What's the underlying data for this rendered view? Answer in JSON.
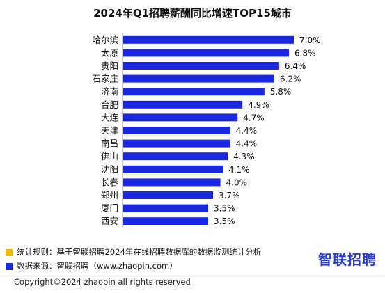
{
  "colors": {
    "bar": "#1a27e0",
    "rule_square": "#f2b800",
    "source_square": "#1a27e0",
    "brand": "#2b3fd6"
  },
  "chart_data": {
    "type": "bar",
    "orientation": "horizontal",
    "title": "2024年Q1招聘薪酬同比增速TOP15城市",
    "categories": [
      "哈尔滨",
      "太原",
      "贵阳",
      "石家庄",
      "济南",
      "合肥",
      "大连",
      "天津",
      "南昌",
      "佛山",
      "沈阳",
      "长春",
      "郑州",
      "厦门",
      "西安"
    ],
    "values": [
      7.0,
      6.8,
      6.4,
      6.2,
      5.8,
      4.9,
      4.7,
      4.4,
      4.4,
      4.3,
      4.1,
      4.0,
      3.7,
      3.5,
      3.5
    ],
    "value_labels": [
      "7.0%",
      "6.8%",
      "6.4%",
      "6.2%",
      "5.8%",
      "4.9%",
      "4.7%",
      "4.4%",
      "4.4%",
      "4.3%",
      "4.1%",
      "4.0%",
      "3.7%",
      "3.5%",
      "3.5%"
    ],
    "xlim": [
      0,
      7.0
    ],
    "grid": false
  },
  "legend": {
    "rule": "统计规则：基于智联招聘2024年在线招聘数据库的数据监测统计分析",
    "source": "数据来源：智联招聘（www.zhaopin.com）"
  },
  "brand_logo": "智联招聘",
  "copyright": "Copyright©2024 zhaopin all rights reserved"
}
